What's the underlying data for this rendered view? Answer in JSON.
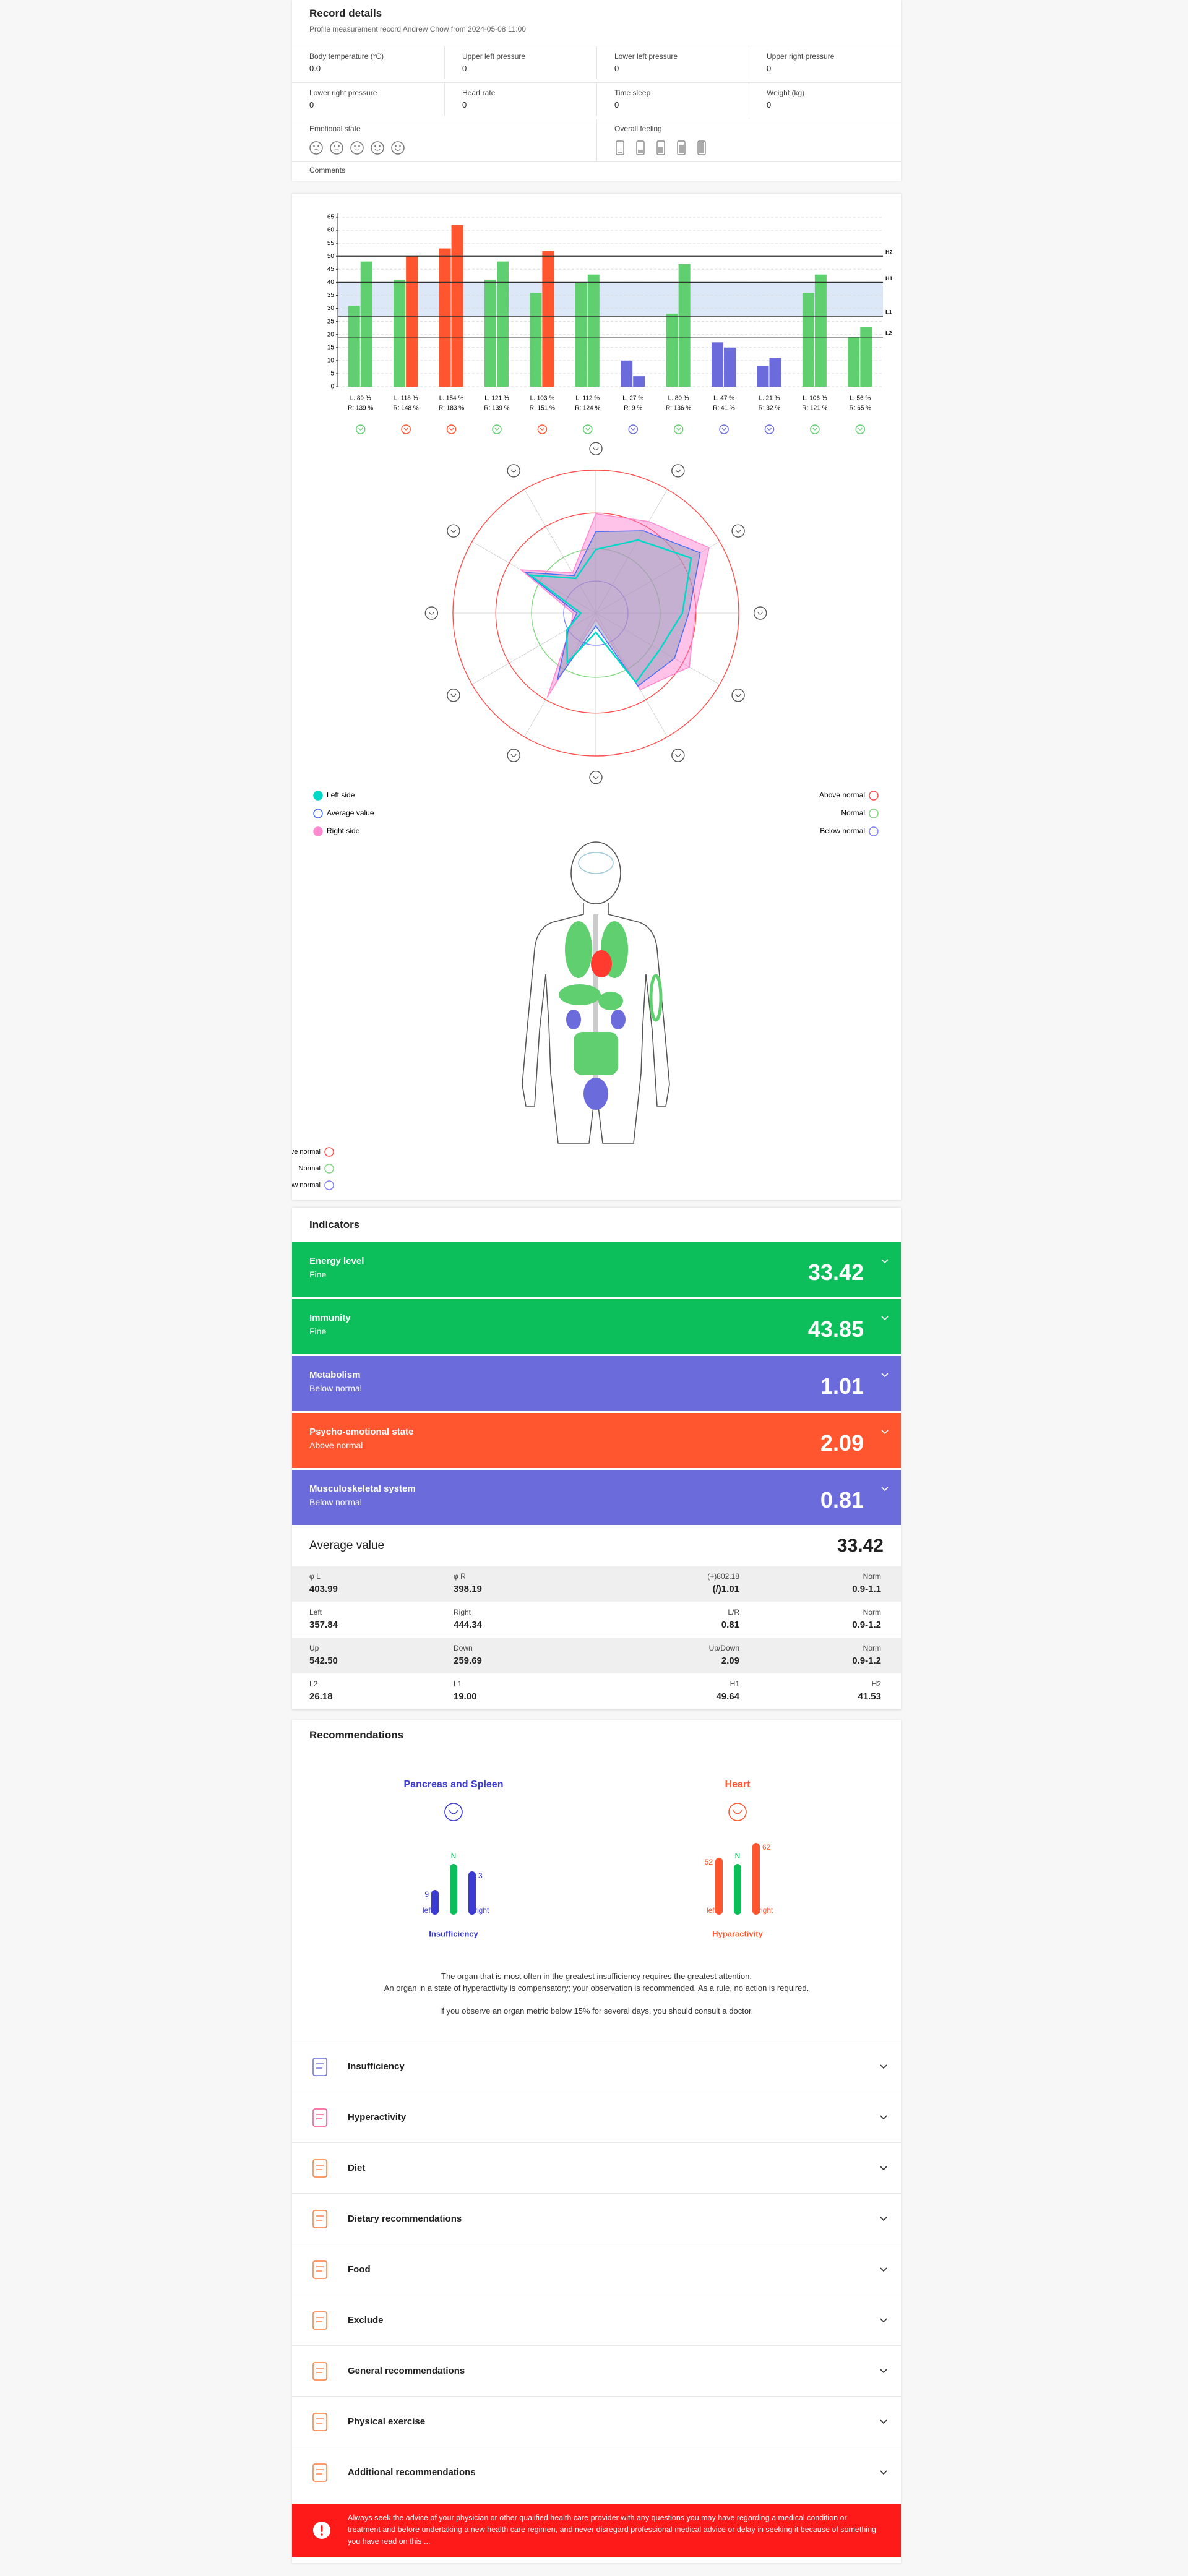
{
  "record": {
    "title": "Record details",
    "subtitle": "Profile measurement record Andrew Chow from 2024-05-08 11:00",
    "fields": [
      {
        "label": "Body temperature (°C)",
        "value": "0.0"
      },
      {
        "label": "Upper left pressure",
        "value": "0"
      },
      {
        "label": "Lower left pressure",
        "value": "0"
      },
      {
        "label": "Upper right pressure",
        "value": "0"
      },
      {
        "label": "Lower right pressure",
        "value": "0"
      },
      {
        "label": "Heart rate",
        "value": "0"
      },
      {
        "label": "Time sleep",
        "value": "0"
      },
      {
        "label": "Weight (kg)",
        "value": "0"
      }
    ],
    "emotional_state": "Emotional state",
    "overall_feeling": "Overall feeling",
    "comments": "Comments"
  },
  "chart_data": [
    {
      "type": "bar",
      "categories": [
        [
          "L: 89 %",
          "R: 139 %"
        ],
        [
          "L: 118 %",
          "R: 148 %"
        ],
        [
          "L: 154 %",
          "R: 183 %"
        ],
        [
          "L: 121 %",
          "R: 139 %"
        ],
        [
          "L: 103 %",
          "R: 151 %"
        ],
        [
          "L: 112 %",
          "R: 124 %"
        ],
        [
          "L: 27 %",
          "R: 9 %"
        ],
        [
          "L: 80 %",
          "R: 136 %"
        ],
        [
          "L: 47 %",
          "R: 41 %"
        ],
        [
          "L: 21 %",
          "R: 32 %"
        ],
        [
          "L: 106 %",
          "R: 121 %"
        ],
        [
          "L: 56 %",
          "R: 65 %"
        ]
      ],
      "series": [
        {
          "values": [
            31,
            41,
            53,
            41,
            36,
            40,
            10,
            28,
            17,
            8,
            36,
            19
          ],
          "colors": [
            "#5fcf6f",
            "#5fcf6f",
            "#ff5630",
            "#5fcf6f",
            "#5fcf6f",
            "#5fcf6f",
            "#6b6bdb",
            "#5fcf6f",
            "#6b6bdb",
            "#6b6bdb",
            "#5fcf6f",
            "#5fcf6f"
          ]
        },
        {
          "values": [
            48,
            50,
            62,
            48,
            52,
            43,
            4,
            47,
            15,
            11,
            43,
            23
          ],
          "colors": [
            "#5fcf6f",
            "#ff5630",
            "#ff5630",
            "#5fcf6f",
            "#ff5630",
            "#5fcf6f",
            "#6b6bdb",
            "#5fcf6f",
            "#6b6bdb",
            "#6b6bdb",
            "#5fcf6f",
            "#5fcf6f"
          ]
        }
      ],
      "icon_colors": [
        "#5fcf6f",
        "#ff5630",
        "#ff5630",
        "#5fcf6f",
        "#ff5630",
        "#5fcf6f",
        "#6b6bdb",
        "#5fcf6f",
        "#6b6bdb",
        "#6b6bdb",
        "#5fcf6f",
        "#5fcf6f"
      ],
      "ylim": [
        0,
        65
      ],
      "yticks": [
        0,
        5,
        10,
        15,
        20,
        25,
        30,
        35,
        40,
        45,
        50,
        55,
        60,
        65
      ],
      "grid": true,
      "reference_lines": [
        {
          "label": "H2",
          "value": 50
        },
        {
          "label": "H1",
          "value": 40
        },
        {
          "label": "L1",
          "value": 27
        },
        {
          "label": "L2",
          "value": 19
        }
      ],
      "band_color": "#dce8f7"
    },
    {
      "type": "radar",
      "rlim": [
        0,
        200
      ],
      "rings": [
        200,
        140,
        90,
        45
      ],
      "ring_colors": [
        "#ff4d4d",
        "#ff4d4d",
        "#7ed67e",
        "#8080ff"
      ],
      "series": [
        {
          "name": "Left side",
          "color": "#00d9c8",
          "values": [
            89,
            118,
            154,
            121,
            103,
            112,
            27,
            80,
            47,
            21,
            106,
            56
          ]
        },
        {
          "name": "Average value",
          "color": "#4a6cf7",
          "values": [
            114,
            133,
            168.5,
            130,
            127,
            118,
            18,
            108,
            44,
            26.5,
            113.5,
            60.5
          ]
        },
        {
          "name": "Right side",
          "color": "#ff8ad0",
          "values": [
            139,
            148,
            183,
            139,
            151,
            124,
            9,
            136,
            41,
            32,
            121,
            65
          ]
        }
      ],
      "icon_colors": [
        "#555",
        "#555",
        "#555",
        "#555",
        "#555",
        "#555",
        "#555",
        "#555",
        "#555",
        "#555",
        "#555",
        "#555"
      ],
      "status_legend": [
        {
          "label": "Above normal",
          "color": "#ff4d4d"
        },
        {
          "label": "Normal",
          "color": "#7ed67e"
        },
        {
          "label": "Below normal",
          "color": "#8080ff"
        }
      ]
    }
  ],
  "body_legend": [
    {
      "label": "Above normal",
      "color": "#ff4d4d"
    },
    {
      "label": "Normal",
      "color": "#7ed67e"
    },
    {
      "label": "Below normal",
      "color": "#8080ff"
    }
  ],
  "indicators": {
    "title": "Indicators",
    "items": [
      {
        "name": "Energy level",
        "status": "Fine",
        "value": "33.42",
        "color": "#0dbf5b"
      },
      {
        "name": "Immunity",
        "status": "Fine",
        "value": "43.85",
        "color": "#0dbf5b"
      },
      {
        "name": "Metabolism",
        "status": "Below normal",
        "value": "1.01",
        "color": "#6b6bdb"
      },
      {
        "name": "Psycho-emotional state",
        "status": "Above normal",
        "value": "2.09",
        "color": "#ff5630"
      },
      {
        "name": "Musculoskeletal system",
        "status": "Below normal",
        "value": "0.81",
        "color": "#6b6bdb"
      }
    ],
    "average_label": "Average value",
    "average_value": "33.42",
    "table": [
      [
        [
          "φ L",
          "403.99"
        ],
        [
          "φ R",
          "398.19"
        ],
        [
          "(+)802.18",
          "(/)1.01"
        ],
        [
          "Norm",
          "0.9-1.1"
        ]
      ],
      [
        [
          "Left",
          "357.84"
        ],
        [
          "Right",
          "444.34"
        ],
        [
          "L/R",
          "0.81"
        ],
        [
          "Norm",
          "0.9-1.2"
        ]
      ],
      [
        [
          "Up",
          "542.50"
        ],
        [
          "Down",
          "259.69"
        ],
        [
          "Up/Down",
          "2.09"
        ],
        [
          "Norm",
          "0.9-1.2"
        ]
      ],
      [
        [
          "L2",
          "26.18"
        ],
        [
          "L1",
          "19.00"
        ],
        [
          "H1",
          "49.64"
        ],
        [
          "H2",
          "41.53"
        ]
      ]
    ]
  },
  "recommendations": {
    "title": "Recommendations",
    "panels": [
      {
        "name": "Pancreas and Spleen",
        "color": "#3b3bd4",
        "labels": [
          "9",
          "N",
          "3"
        ],
        "sides": [
          "left",
          "right"
        ],
        "status": "Insufficiency",
        "bar_colors": [
          "#3b3bd4",
          "#0dbf5b",
          "#3b3bd4"
        ]
      },
      {
        "name": "Heart",
        "color": "#ff5630",
        "labels": [
          "52",
          "N",
          "62"
        ],
        "sides": [
          "left",
          "right"
        ],
        "status": "Hyparactivity",
        "bar_colors": [
          "#ff5630",
          "#0dbf5b",
          "#ff5630"
        ]
      }
    ],
    "notes": [
      "The organ that is most often in the greatest insufficiency requires the greatest attention.",
      "An organ in a state of hyperactivity is compensatory; your observation is recommended. As a rule, no action is required.",
      "If you observe an organ metric below 15% for several days, you should consult a doctor."
    ],
    "sections": [
      "Insufficiency",
      "Hyperactivity",
      "Diet",
      "Dietary recommendations",
      "Food",
      "Exclude",
      "General recommendations",
      "Physical exercise",
      "Additional recommendations"
    ],
    "disclaimer": "Always seek the advice of your physician or other qualified health care provider with any questions you may have regarding a medical condition or treatment and before undertaking a new health care regimen, and never disregard professional medical advice or delay in seeking it because of something you have read on this ..."
  }
}
